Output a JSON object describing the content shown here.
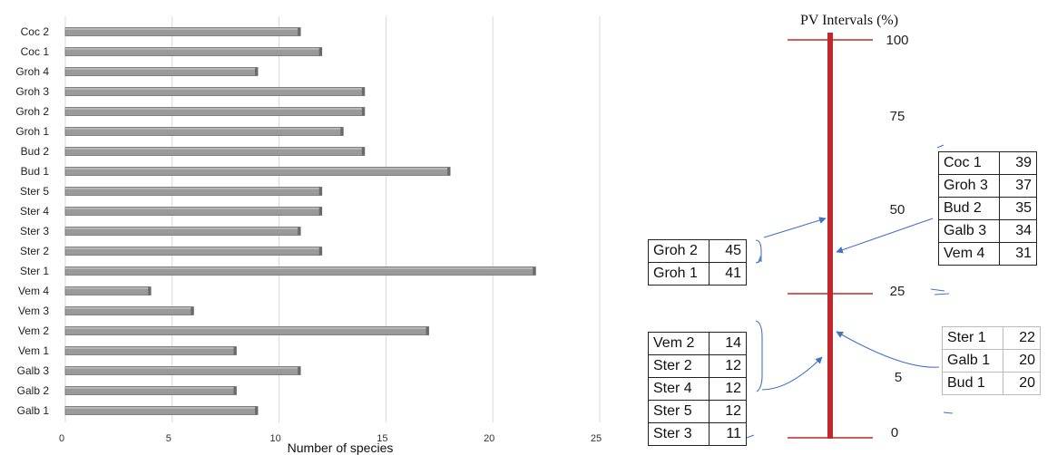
{
  "chart_data": [
    {
      "type": "bar",
      "orientation": "horizontal",
      "categories": [
        "Coc 2",
        "Coc 1",
        "Groh 4",
        "Groh 3",
        "Groh 2",
        "Groh 1",
        "Bud 2",
        "Bud 1",
        "Ster 5",
        "Ster 4",
        "Ster 3",
        "Ster 2",
        "Ster 1",
        "Vem 4",
        "Vem 3",
        "Vem 2",
        "Vem 1",
        "Galb 3",
        "Galb 2",
        "Galb 1"
      ],
      "values": [
        11,
        12,
        9,
        14,
        14,
        13,
        14,
        18,
        12,
        12,
        11,
        12,
        22,
        4,
        6,
        17,
        8,
        11,
        8,
        9
      ],
      "xlabel": "Number of species",
      "xticks": [
        "0",
        "5",
        "10",
        "15",
        "20",
        "25"
      ],
      "xlim": [
        0,
        25
      ],
      "grid": "vertical",
      "bar_color": "#9a9a9a"
    },
    {
      "type": "table",
      "title": "PV Intervals (%)",
      "scale_labels": [
        "100",
        "75",
        "50",
        "25",
        "5",
        "0"
      ],
      "thresholds": [
        100,
        25,
        0
      ],
      "groups": [
        {
          "label_points_to": "upper",
          "rows": [
            {
              "name": "Groh 2",
              "value": "45"
            },
            {
              "name": "Groh 1",
              "value": "41"
            }
          ]
        },
        {
          "label_points_to": "upper",
          "rows": [
            {
              "name": "Coc 1",
              "value": "39"
            },
            {
              "name": "Groh 3",
              "value": "37"
            },
            {
              "name": "Bud 2",
              "value": "35"
            },
            {
              "name": "Galb 3",
              "value": "34"
            },
            {
              "name": "Vem 4",
              "value": "31"
            }
          ]
        },
        {
          "label_points_to": "lower",
          "rows": [
            {
              "name": "Vem 2",
              "value": "14"
            },
            {
              "name": "Ster 2",
              "value": "12"
            },
            {
              "name": "Ster 4",
              "value": "12"
            },
            {
              "name": "Ster 5",
              "value": "12"
            },
            {
              "name": "Ster 3",
              "value": "11"
            }
          ]
        },
        {
          "label_points_to": "lower",
          "rows": [
            {
              "name": "Ster 1",
              "value": "22"
            },
            {
              "name": "Galb 1",
              "value": "20"
            },
            {
              "name": "Bud 1",
              "value": "20"
            }
          ]
        }
      ],
      "axis_color": "#c0282d",
      "arrow_color": "#4472c4"
    }
  ]
}
